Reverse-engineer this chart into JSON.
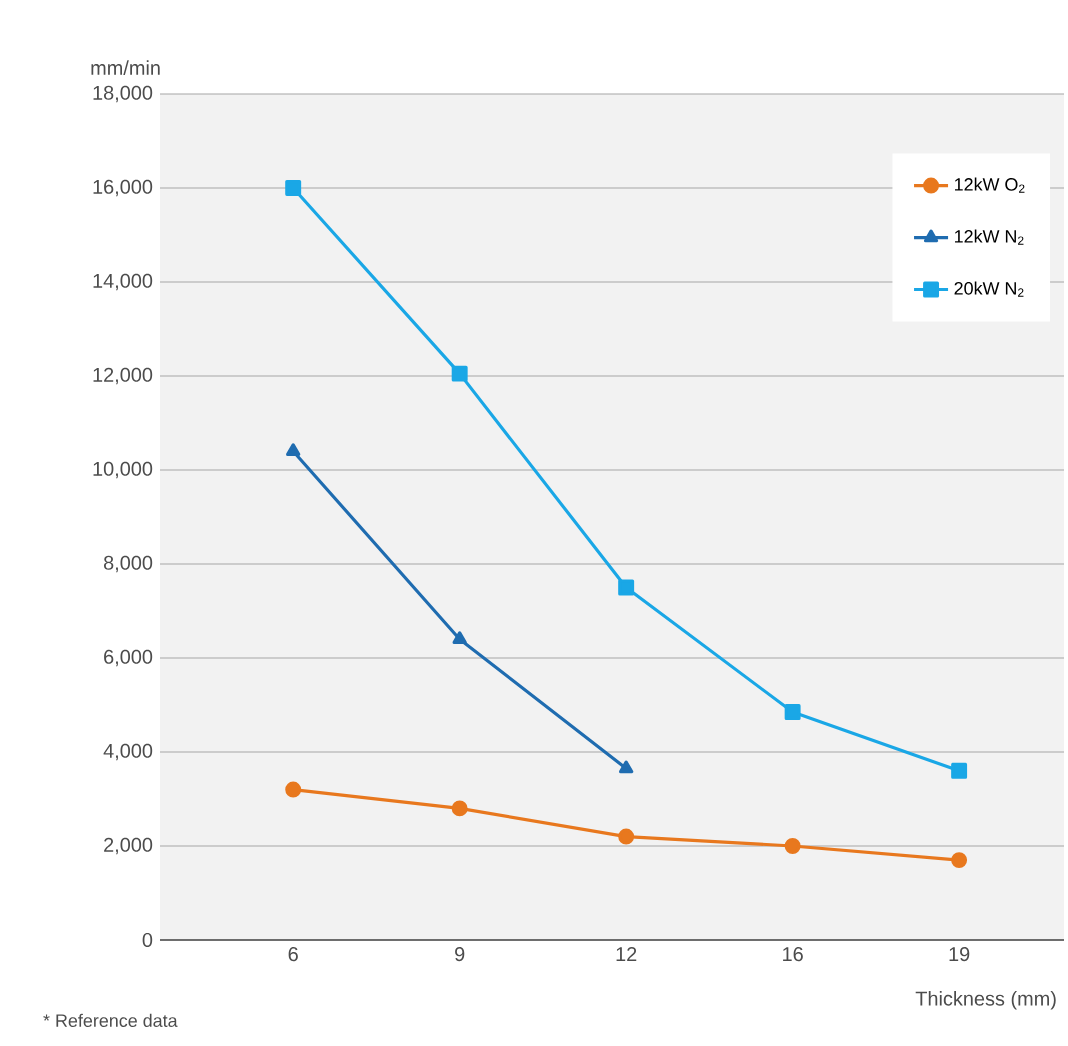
{
  "chart_data": {
    "type": "line",
    "categories": [
      "6",
      "9",
      "12",
      "16",
      "19"
    ],
    "series": [
      {
        "name": "12kW O$_{2}$",
        "color": "#e8781e",
        "marker": "circle",
        "values": [
          3200,
          2800,
          2200,
          2000,
          1700
        ]
      },
      {
        "name": "12kW N$_{2}$",
        "color": "#1f6cb0",
        "marker": "triangle",
        "values": [
          10400,
          6400,
          3650,
          null,
          null
        ]
      },
      {
        "name": "20kW N$_{2}$",
        "color": "#1aa7e6",
        "marker": "square",
        "values": [
          16000,
          12050,
          7500,
          4850,
          3600
        ]
      }
    ],
    "ylim": [
      0,
      18000
    ],
    "yticks": [
      0,
      {
        "value": 2000,
        "label": "2,000"
      },
      {
        "value": 4000,
        "label": "4,000"
      },
      {
        "value": 6000,
        "label": "6,000"
      },
      {
        "value": 8000,
        "label": "8,000"
      },
      {
        "value": 10000,
        "label": "10,000"
      },
      {
        "value": 12000,
        "label": "12,000"
      },
      {
        "value": 14000,
        "label": "14,000"
      },
      {
        "value": 16000,
        "label": "16,000"
      },
      {
        "value": 18000,
        "label": "18,000"
      }
    ],
    "ylabel": "mm/min",
    "xlabel": "Thickness (mm)",
    "annotations": [
      "* Reference data"
    ],
    "grid": "y",
    "legend": "top right",
    "line_style": "solid"
  }
}
